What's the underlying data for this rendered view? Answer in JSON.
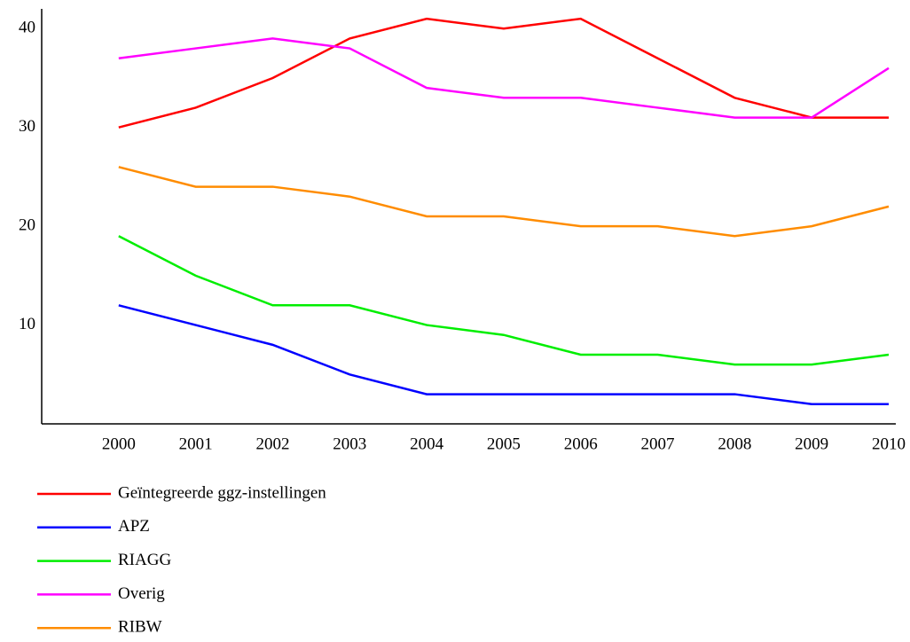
{
  "chart_data": {
    "type": "line",
    "x": [
      2000,
      2001,
      2002,
      2003,
      2004,
      2005,
      2006,
      2007,
      2008,
      2009,
      2010
    ],
    "xlim": [
      1999,
      2010
    ],
    "xticks": [
      2000,
      2001,
      2002,
      2003,
      2004,
      2005,
      2006,
      2007,
      2008,
      2009,
      2010
    ],
    "ylim": [
      0,
      42
    ],
    "yticks": [
      10,
      20,
      30,
      40
    ],
    "series": [
      {
        "name": "Geïntegreerde ggz-instellingen",
        "color": "#ff0000",
        "values": [
          30,
          32,
          35,
          39,
          41,
          40,
          41,
          37,
          33,
          31,
          31
        ]
      },
      {
        "name": "APZ",
        "color": "#0000ff",
        "values": [
          12,
          10,
          8,
          5,
          3,
          3,
          3,
          3,
          3,
          2,
          2
        ]
      },
      {
        "name": "RIAGG",
        "color": "#00ee00",
        "values": [
          19,
          15,
          12,
          12,
          10,
          9,
          7,
          7,
          6,
          6,
          7
        ]
      },
      {
        "name": "Overig",
        "color": "#ff00ff",
        "values": [
          37,
          38,
          39,
          38,
          34,
          33,
          33,
          32,
          31,
          31,
          36
        ]
      },
      {
        "name": "RIBW",
        "color": "#ff8c00",
        "values": [
          26,
          24,
          24,
          23,
          21,
          21,
          20,
          20,
          19,
          20,
          22
        ]
      }
    ]
  }
}
